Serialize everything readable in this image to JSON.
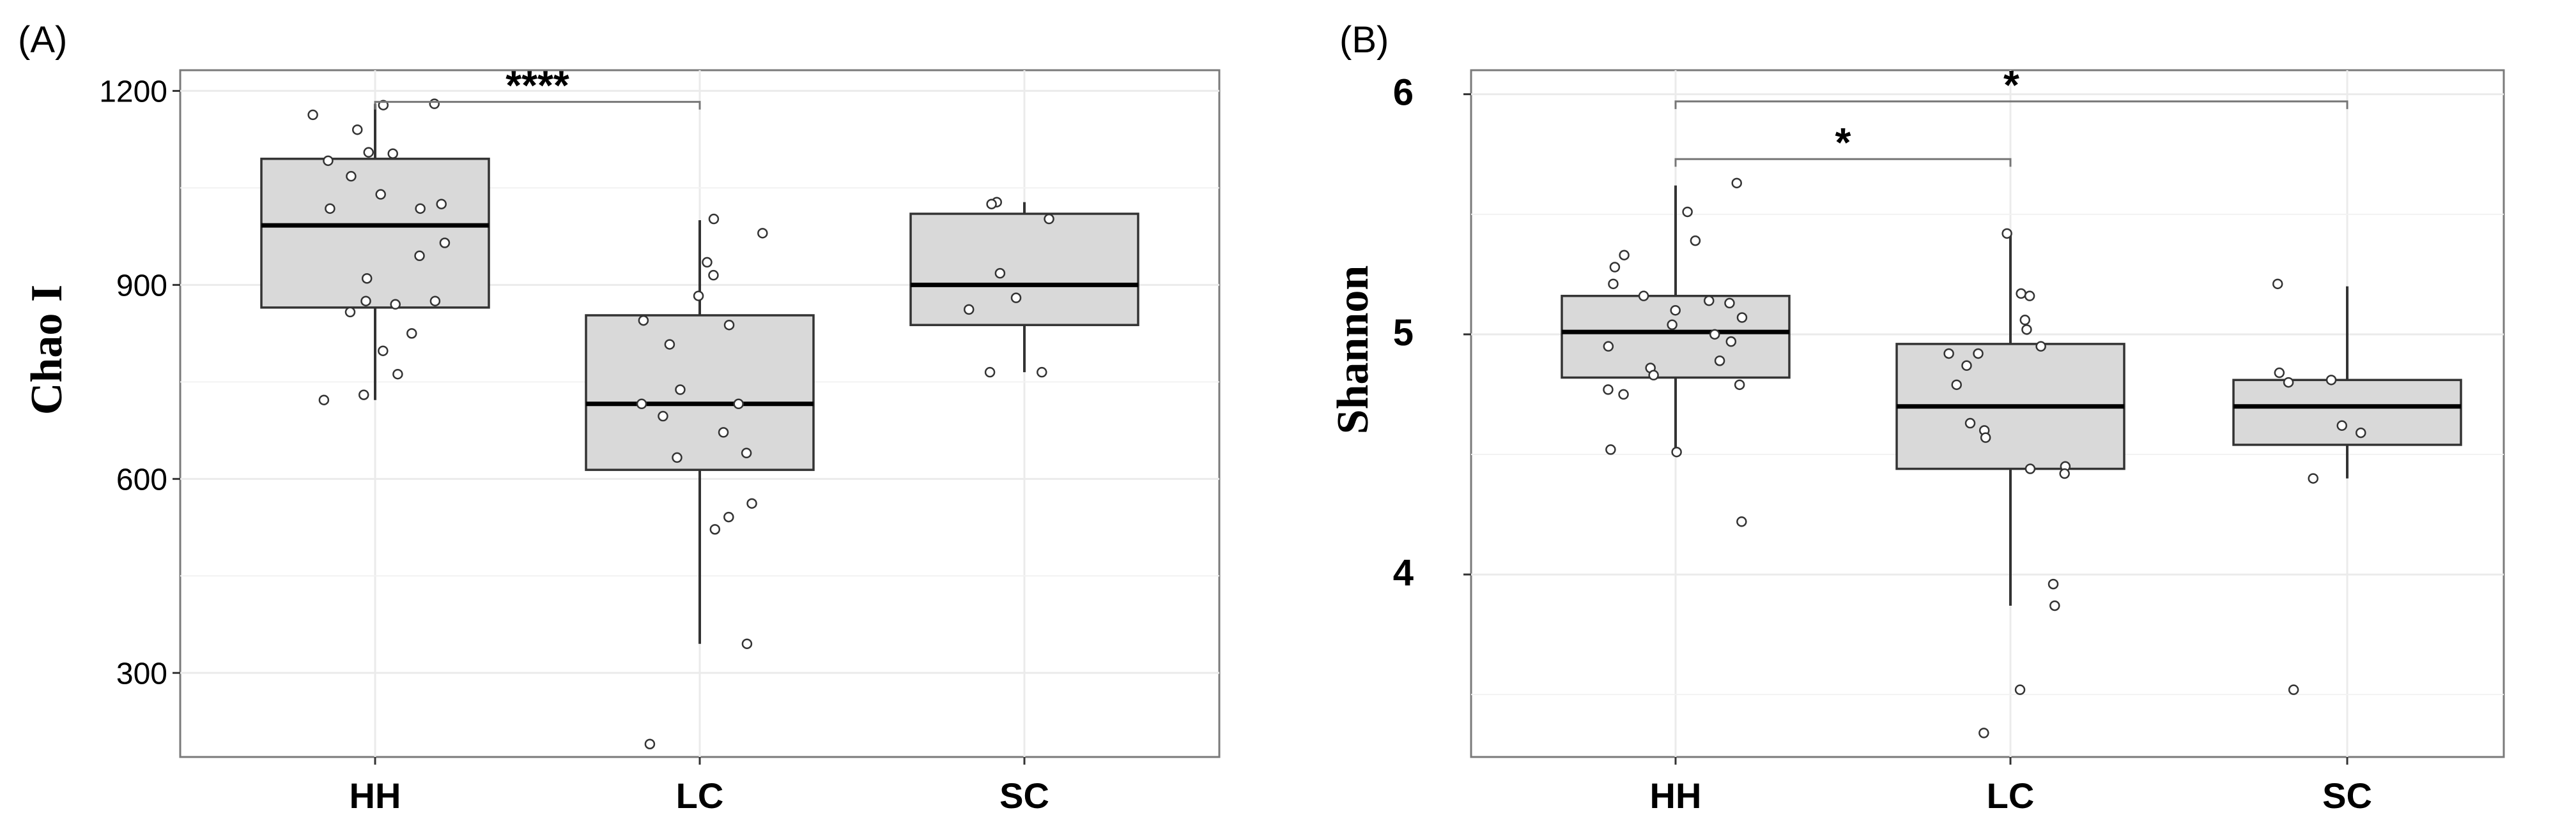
{
  "chart_data": [
    {
      "panel": "(A)",
      "type": "boxplot",
      "ylabel": "Chao I",
      "xlabel": "",
      "categories": [
        "HH",
        "LC",
        "SC"
      ],
      "ylim": [
        170,
        1232
      ],
      "yticks": [
        300,
        600,
        900,
        1200
      ],
      "grid": true,
      "boxes": [
        {
          "category": "HH",
          "min": 722,
          "q1": 865,
          "median": 992,
          "q3": 1095,
          "max": 1180
        },
        {
          "category": "LC",
          "min": 345,
          "q1": 614,
          "median": 716,
          "q3": 853,
          "max": 1000
        },
        {
          "category": "SC",
          "min": 765,
          "q1": 838,
          "median": 900,
          "q3": 1010,
          "max": 1028
        }
      ],
      "points": [
        {
          "category": "HH",
          "values": [
            1180,
            1163,
            1178,
            1140,
            1105,
            1103,
            1092,
            1068,
            1040,
            1025,
            1018,
            1018,
            965,
            945,
            910,
            875,
            875,
            870,
            858,
            825,
            798,
            762,
            730,
            722
          ]
        },
        {
          "category": "LC",
          "values": [
            1002,
            980,
            935,
            915,
            883,
            845,
            838,
            808,
            738,
            716,
            716,
            697,
            672,
            640,
            633,
            562,
            541,
            522,
            345,
            190
          ]
        },
        {
          "category": "SC",
          "values": [
            1028,
            1025,
            1002,
            918,
            880,
            862,
            765,
            765
          ]
        }
      ],
      "significance": [
        {
          "from": "HH",
          "to": "LC",
          "label": "****",
          "y": 1183
        }
      ]
    },
    {
      "panel": "(B)",
      "type": "boxplot",
      "ylabel": "Shannon",
      "xlabel": "",
      "categories": [
        "HH",
        "LC",
        "SC"
      ],
      "ylim": [
        3.24,
        6.1
      ],
      "yticks": [
        4,
        5,
        6
      ],
      "grid": true,
      "boxes": [
        {
          "category": "HH",
          "min": 4.51,
          "q1": 4.82,
          "median": 5.01,
          "q3": 5.16,
          "max": 5.62
        },
        {
          "category": "LC",
          "min": 3.87,
          "q1": 4.44,
          "median": 4.7,
          "q3": 4.96,
          "max": 5.42
        },
        {
          "category": "SC",
          "min": 4.4,
          "q1": 4.54,
          "median": 4.7,
          "q3": 4.81,
          "max": 5.2
        }
      ],
      "points": [
        {
          "category": "HH",
          "values": [
            5.63,
            5.51,
            5.39,
            5.33,
            5.28,
            5.21,
            5.16,
            5.14,
            5.13,
            5.1,
            5.07,
            5.04,
            5.0,
            4.97,
            4.95,
            4.89,
            4.86,
            4.83,
            4.79,
            4.77,
            4.75,
            4.52,
            4.51,
            4.22
          ]
        },
        {
          "category": "LC",
          "values": [
            5.42,
            5.17,
            5.16,
            5.06,
            5.02,
            4.95,
            4.92,
            4.92,
            4.87,
            4.79,
            4.63,
            4.6,
            4.57,
            4.45,
            4.44,
            4.42,
            3.96,
            3.87,
            3.52,
            3.34
          ]
        },
        {
          "category": "SC",
          "values": [
            5.21,
            4.84,
            4.81,
            4.8,
            4.62,
            4.59,
            4.4,
            3.52
          ]
        }
      ],
      "significance": [
        {
          "from": "HH",
          "to": "LC",
          "label": "*",
          "y": 5.73
        },
        {
          "from": "HH",
          "to": "SC",
          "label": "*",
          "y": 5.97
        }
      ]
    }
  ]
}
